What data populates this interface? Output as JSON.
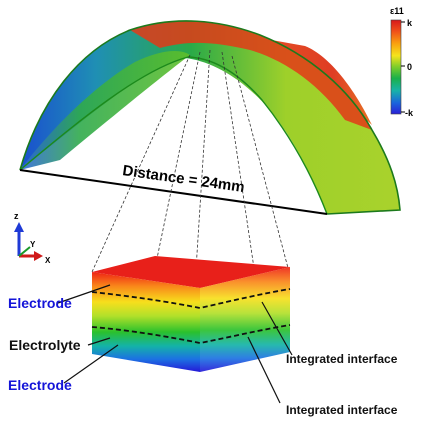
{
  "colorbar": {
    "title": "ε11",
    "top_label": "k",
    "mid_label": "0",
    "bottom_label": "-k",
    "colors": [
      "#d7191c",
      "#ee4a1a",
      "#f98e10",
      "#ffd51a",
      "#cfe62a",
      "#56c02a",
      "#1ab04a",
      "#17b39a",
      "#1a8fd0",
      "#1f52e0",
      "#2a1fd6"
    ]
  },
  "arch": {
    "distance_label": "Distance = 24mm",
    "colors": {
      "left": "#1a5fd0",
      "mid": "#2aa64a",
      "right_top": "#e03a18",
      "right": "#9bcc2a"
    }
  },
  "axes": {
    "z_label": "z",
    "y_label": "Y",
    "x_label": "X"
  },
  "layers": {
    "labels": {
      "electrode_top": "Electrode",
      "electrolyte": "Electrolyte",
      "electrode_bottom": "Electrode",
      "interface_1": "Integrated interface",
      "interface_2": "Integrated interface"
    },
    "colors": {
      "electrode_label": "#1414d8",
      "text": "#111111"
    }
  }
}
